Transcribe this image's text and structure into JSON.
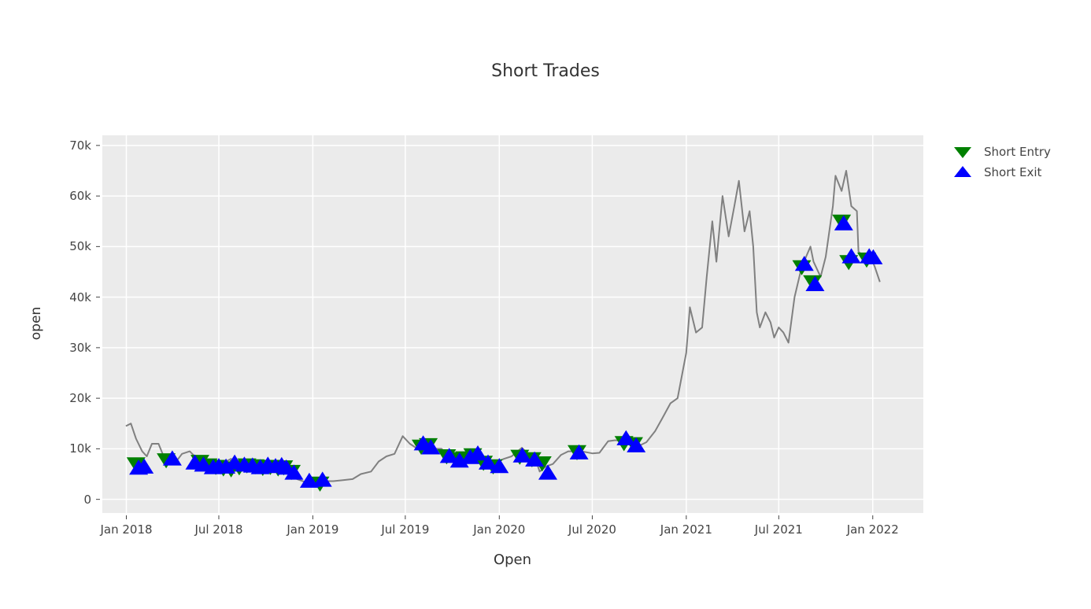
{
  "chart_data": {
    "type": "scatter",
    "title": "Short Trades",
    "xlabel": "Open",
    "ylabel": "open",
    "x_range": [
      "2017-11-15",
      "2022-04-10"
    ],
    "ylim": [
      -2700,
      72000
    ],
    "grid": true,
    "legend_position": "top-right",
    "y_ticks": [
      {
        "value": 0,
        "label": "0"
      },
      {
        "value": 10000,
        "label": "10k"
      },
      {
        "value": 20000,
        "label": "20k"
      },
      {
        "value": 30000,
        "label": "30k"
      },
      {
        "value": 40000,
        "label": "40k"
      },
      {
        "value": 50000,
        "label": "50k"
      },
      {
        "value": 60000,
        "label": "60k"
      },
      {
        "value": 70000,
        "label": "70k"
      }
    ],
    "x_ticks": [
      {
        "value": "2018-01-01",
        "label": "Jan 2018"
      },
      {
        "value": "2018-07-01",
        "label": "Jul 2018"
      },
      {
        "value": "2019-01-01",
        "label": "Jan 2019"
      },
      {
        "value": "2019-07-01",
        "label": "Jul 2019"
      },
      {
        "value": "2020-01-01",
        "label": "Jan 2020"
      },
      {
        "value": "2020-07-01",
        "label": "Jul 2020"
      },
      {
        "value": "2021-01-01",
        "label": "Jan 2021"
      },
      {
        "value": "2021-07-01",
        "label": "Jul 2021"
      },
      {
        "value": "2022-01-01",
        "label": "Jan 2022"
      }
    ],
    "price_line": {
      "color": "#808080",
      "x": [
        "2017-12-31",
        "2018-01-10",
        "2018-01-20",
        "2018-02-01",
        "2018-02-10",
        "2018-02-20",
        "2018-03-05",
        "2018-03-15",
        "2018-03-25",
        "2018-04-05",
        "2018-04-20",
        "2018-05-05",
        "2018-05-20",
        "2018-06-01",
        "2018-06-15",
        "2018-07-01",
        "2018-07-15",
        "2018-07-25",
        "2018-08-10",
        "2018-08-25",
        "2018-09-10",
        "2018-09-25",
        "2018-10-10",
        "2018-10-25",
        "2018-11-10",
        "2018-11-20",
        "2018-12-01",
        "2018-12-15",
        "2019-01-01",
        "2019-01-20",
        "2019-02-10",
        "2019-03-01",
        "2019-03-20",
        "2019-04-05",
        "2019-04-25",
        "2019-05-10",
        "2019-05-25",
        "2019-06-10",
        "2019-06-26",
        "2019-07-10",
        "2019-07-25",
        "2019-08-10",
        "2019-08-25",
        "2019-09-10",
        "2019-09-25",
        "2019-10-10",
        "2019-10-26",
        "2019-11-10",
        "2019-11-25",
        "2019-12-10",
        "2019-12-25",
        "2020-01-10",
        "2020-01-25",
        "2020-02-14",
        "2020-03-01",
        "2020-03-12",
        "2020-03-20",
        "2020-04-01",
        "2020-04-15",
        "2020-05-01",
        "2020-05-15",
        "2020-06-01",
        "2020-06-15",
        "2020-07-01",
        "2020-07-15",
        "2020-08-01",
        "2020-08-15",
        "2020-09-01",
        "2020-09-15",
        "2020-10-01",
        "2020-10-15",
        "2020-11-01",
        "2020-11-15",
        "2020-12-01",
        "2020-12-15",
        "2021-01-01",
        "2021-01-08",
        "2021-01-20",
        "2021-02-01",
        "2021-02-10",
        "2021-02-21",
        "2021-03-01",
        "2021-03-13",
        "2021-03-25",
        "2021-04-05",
        "2021-04-14",
        "2021-04-25",
        "2021-05-05",
        "2021-05-12",
        "2021-05-19",
        "2021-05-25",
        "2021-06-05",
        "2021-06-15",
        "2021-06-22",
        "2021-07-01",
        "2021-07-10",
        "2021-07-20",
        "2021-08-01",
        "2021-08-15",
        "2021-09-01",
        "2021-09-07",
        "2021-09-21",
        "2021-10-01",
        "2021-10-15",
        "2021-10-20",
        "2021-11-01",
        "2021-11-10",
        "2021-11-20",
        "2021-12-01",
        "2021-12-04",
        "2021-12-15",
        "2021-12-28",
        "2022-01-05",
        "2022-01-15"
      ],
      "y": [
        14500,
        15000,
        12000,
        9500,
        8500,
        11000,
        11000,
        8500,
        8000,
        7000,
        9000,
        9500,
        8000,
        7500,
        6500,
        6500,
        7500,
        8000,
        6500,
        7000,
        6500,
        6500,
        6600,
        6400,
        6300,
        5500,
        4000,
        3500,
        3800,
        3600,
        3600,
        3800,
        4000,
        5000,
        5500,
        7500,
        8500,
        9000,
        12500,
        11000,
        10000,
        11500,
        10000,
        10000,
        8500,
        8300,
        9300,
        8700,
        7300,
        7200,
        7300,
        8000,
        8500,
        10200,
        8700,
        7900,
        5500,
        6500,
        7000,
        8800,
        9500,
        9500,
        9400,
        9100,
        9200,
        11500,
        11700,
        11500,
        10700,
        10600,
        11300,
        13500,
        16000,
        19000,
        20000,
        29000,
        38000,
        33000,
        34000,
        44000,
        55000,
        47000,
        60000,
        52000,
        58000,
        63000,
        53000,
        57000,
        50000,
        37000,
        34000,
        37000,
        35000,
        32000,
        34000,
        33000,
        31000,
        40000,
        46000,
        50000,
        47000,
        44000,
        48000,
        58000,
        64000,
        61000,
        65000,
        58000,
        57000,
        49000,
        48000,
        48000,
        46000,
        43000
      ]
    },
    "series": [
      {
        "name": "Short Entry",
        "marker": "triangle-down",
        "color": "#008000",
        "x": [
          "2018-01-20",
          "2018-03-20",
          "2018-05-25",
          "2018-06-10",
          "2018-06-25",
          "2018-07-10",
          "2018-07-25",
          "2018-08-10",
          "2018-08-25",
          "2018-09-10",
          "2018-09-25",
          "2018-10-10",
          "2018-10-25",
          "2018-11-05",
          "2018-11-20",
          "2019-01-15",
          "2019-08-01",
          "2019-08-15",
          "2019-09-20",
          "2019-10-10",
          "2019-10-25",
          "2019-11-10",
          "2019-12-01",
          "2019-12-20",
          "2020-02-10",
          "2020-03-05",
          "2020-03-25",
          "2020-06-01",
          "2020-09-01",
          "2020-09-20",
          "2021-08-15",
          "2021-09-05",
          "2021-11-01",
          "2021-11-15",
          "2021-12-20"
        ],
        "y": [
          7000,
          7800,
          7500,
          6800,
          6500,
          6200,
          6000,
          6400,
          6800,
          6600,
          6300,
          6500,
          6200,
          6400,
          5500,
          3200,
          10500,
          10800,
          8600,
          8000,
          8200,
          8800,
          7300,
          6600,
          8500,
          8000,
          7200,
          9400,
          11200,
          11000,
          46000,
          43000,
          55000,
          47000,
          47500
        ]
      },
      {
        "name": "Short Exit",
        "marker": "triangle-up",
        "color": "#0000ff",
        "x": [
          "2018-01-25",
          "2018-02-05",
          "2018-04-01",
          "2018-05-15",
          "2018-06-01",
          "2018-06-20",
          "2018-07-01",
          "2018-07-15",
          "2018-08-01",
          "2018-08-20",
          "2018-09-05",
          "2018-09-20",
          "2018-10-05",
          "2018-10-20",
          "2018-11-01",
          "2018-11-10",
          "2018-11-25",
          "2018-12-25",
          "2019-01-20",
          "2019-08-05",
          "2019-08-20",
          "2019-09-25",
          "2019-10-15",
          "2019-11-05",
          "2019-11-20",
          "2019-12-10",
          "2020-01-01",
          "2020-02-15",
          "2020-03-10",
          "2020-04-05",
          "2020-06-05",
          "2020-09-05",
          "2020-09-25",
          "2021-08-20",
          "2021-09-10",
          "2021-11-05",
          "2021-11-20",
          "2021-12-25",
          "2022-01-02"
        ],
        "y": [
          6200,
          6400,
          8000,
          7200,
          6800,
          6300,
          6500,
          6400,
          7200,
          6800,
          6600,
          6300,
          6800,
          6500,
          6700,
          6200,
          5200,
          3600,
          3800,
          11000,
          10200,
          8500,
          7600,
          8300,
          9000,
          7200,
          6500,
          8600,
          7800,
          5200,
          9200,
          12000,
          10600,
          46500,
          42500,
          54500,
          48000,
          48000,
          47800
        ]
      }
    ]
  }
}
